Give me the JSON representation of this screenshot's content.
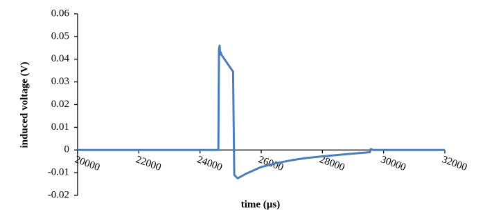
{
  "chart_data": {
    "type": "line",
    "x_label": "time (µs)",
    "y_label": "induced voltage (V)",
    "color": "#4a7ebb",
    "x": [
      20000,
      24600,
      24620,
      24640,
      24660,
      24680,
      24700,
      25080,
      25120,
      25230,
      25500,
      26000,
      26500,
      27000,
      27500,
      28000,
      28500,
      29000,
      29550,
      29580,
      29650,
      32000
    ],
    "values": [
      0,
      0,
      0.044,
      0.046,
      0.042,
      0.043,
      0.042,
      0.0345,
      -0.011,
      -0.0125,
      -0.0105,
      -0.0075,
      -0.0058,
      -0.0045,
      -0.0035,
      -0.0028,
      -0.0022,
      -0.0016,
      -0.001,
      0.0004,
      0,
      0
    ],
    "xlim": [
      20000,
      32000
    ],
    "xticks": [
      20000,
      22000,
      24000,
      26000,
      28000,
      30000,
      32000
    ],
    "ylim": [
      -0.02,
      0.06
    ],
    "yticks": [
      0.06,
      0.05,
      0.04,
      0.03,
      0.02,
      0.01,
      0,
      -0.01,
      -0.02
    ]
  }
}
